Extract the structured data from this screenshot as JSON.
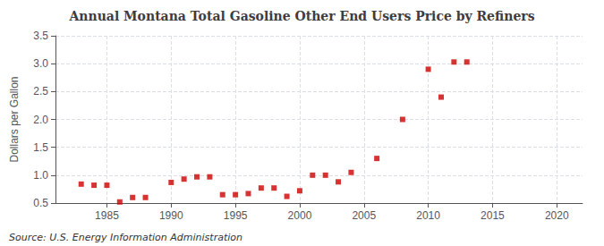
{
  "chart_data": {
    "type": "scatter",
    "title": "Annual Montana Total Gasoline Other End Users Price by Refiners",
    "y_label": "Dollars per Gallon",
    "annotations": [
      "Source: U.S. Energy Information Administration"
    ],
    "color": "#cc0000",
    "marker": "square",
    "x": [
      1983,
      1984,
      1985,
      1986,
      1987,
      1988,
      1990,
      1991,
      1992,
      1993,
      1994,
      1995,
      1996,
      1997,
      1998,
      1999,
      2000,
      2001,
      2002,
      2003,
      2004,
      2006,
      2008,
      2010,
      2011,
      2012,
      2013
    ],
    "values": [
      0.84,
      0.82,
      0.82,
      0.52,
      0.6,
      0.6,
      0.87,
      0.93,
      0.97,
      0.97,
      0.65,
      0.65,
      0.67,
      0.77,
      0.77,
      0.62,
      0.72,
      1.0,
      1.0,
      0.88,
      1.05,
      1.3,
      2.0,
      2.9,
      2.4,
      3.03,
      3.03
    ],
    "xlim": [
      1981,
      2022
    ],
    "xticks": [
      1985,
      1990,
      1995,
      2000,
      2005,
      2010,
      2015,
      2020
    ],
    "ylim": [
      0.5,
      3.5
    ],
    "yticks": [
      0.5,
      {
        "value": 1.0,
        "label": "1.0"
      },
      1.5,
      {
        "value": 2.0,
        "label": "2.0"
      },
      2.5,
      {
        "value": 3.0,
        "label": "3.0"
      },
      3.5
    ],
    "grid": true
  }
}
